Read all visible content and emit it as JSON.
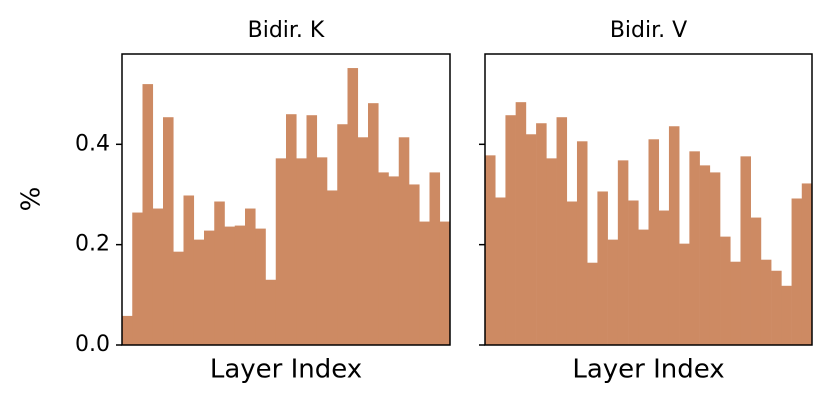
{
  "chart_data": [
    {
      "type": "bar",
      "title": "Bidir. K",
      "xlabel": "Layer Index",
      "ylabel": "%",
      "color": "#cd8a63",
      "values": [
        0.058,
        0.264,
        0.52,
        0.272,
        0.454,
        0.186,
        0.298,
        0.21,
        0.228,
        0.286,
        0.236,
        0.238,
        0.272,
        0.232,
        0.13,
        0.372,
        0.46,
        0.372,
        0.458,
        0.374,
        0.308,
        0.44,
        0.552,
        0.414,
        0.482,
        0.344,
        0.336,
        0.414,
        0.32,
        0.246,
        0.344,
        0.246
      ],
      "ylim": [
        0,
        0.58
      ],
      "yticks": [
        {
          "value": 0,
          "label": "0.0"
        },
        {
          "value": 0.2,
          "label": "0.2"
        },
        {
          "value": 0.4,
          "label": "0.4"
        }
      ]
    },
    {
      "type": "bar",
      "title": "Bidir. V",
      "xlabel": "Layer Index",
      "color": "#cd8a63",
      "values": [
        0.378,
        0.294,
        0.458,
        0.484,
        0.42,
        0.442,
        0.372,
        0.454,
        0.286,
        0.406,
        0.164,
        0.306,
        0.21,
        0.368,
        0.288,
        0.23,
        0.41,
        0.268,
        0.436,
        0.202,
        0.386,
        0.358,
        0.344,
        0.216,
        0.166,
        0.376,
        0.254,
        0.17,
        0.148,
        0.118,
        0.292,
        0.322
      ],
      "ylim": [
        0,
        0.58
      ],
      "yticks": [
        0,
        0.2,
        0.4
      ]
    }
  ]
}
